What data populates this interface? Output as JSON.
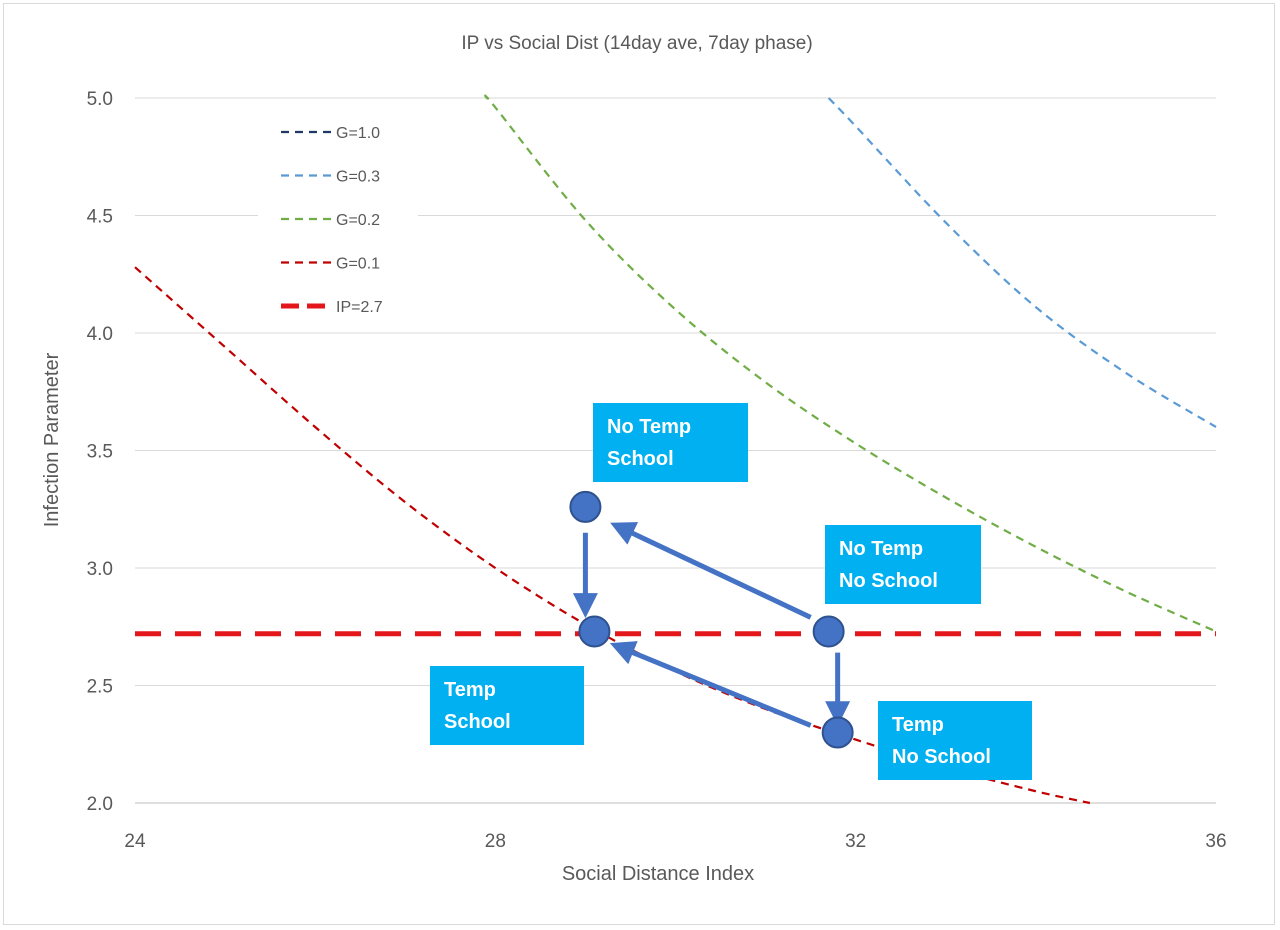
{
  "chart_data": {
    "type": "line",
    "title": "IP vs Social Dist (14day ave, 7day phase)",
    "xlabel": "Social Distance Index",
    "ylabel": "Infection Parameter",
    "xlim": [
      24,
      36
    ],
    "ylim": [
      2.0,
      5.0
    ],
    "xticks": [
      24,
      28,
      32,
      36
    ],
    "yticks": [
      2.0,
      2.5,
      3.0,
      3.5,
      4.0,
      4.5,
      5.0
    ],
    "grid": "horizontal",
    "legend_position": "top-left",
    "series": [
      {
        "name": "G=1.0",
        "color": "#1f3864",
        "style": "dashed",
        "x": [],
        "y": []
      },
      {
        "name": "G=0.3",
        "color": "#5b9bd5",
        "style": "dashed",
        "x": [
          31.7,
          32,
          33,
          34,
          35,
          36
        ],
        "y": [
          5.0,
          4.88,
          4.47,
          4.11,
          3.83,
          3.6
        ]
      },
      {
        "name": "G=0.2",
        "color": "#70ad47",
        "style": "dashed",
        "x": [
          27.9,
          28,
          29,
          30,
          31,
          32,
          33,
          34,
          35,
          36
        ],
        "y": [
          5.0,
          4.96,
          4.48,
          4.1,
          3.79,
          3.53,
          3.3,
          3.09,
          2.9,
          2.73
        ]
      },
      {
        "name": "G=0.1",
        "color": "#c00000",
        "style": "dashed",
        "x": [
          24,
          25,
          26,
          27,
          28,
          29,
          30,
          31,
          32,
          33,
          34,
          34.6
        ],
        "y": [
          4.28,
          3.94,
          3.6,
          3.28,
          3.0,
          2.76,
          2.56,
          2.4,
          2.27,
          2.15,
          2.05,
          2.0
        ]
      },
      {
        "name": "IP=2.7",
        "color": "#e3161b",
        "style": "dashed-thick",
        "x": [
          24,
          36
        ],
        "y": [
          2.72,
          2.72
        ]
      }
    ],
    "points": [
      {
        "id": "no-temp-school",
        "x": 29.0,
        "y": 3.26
      },
      {
        "id": "temp-school",
        "x": 29.1,
        "y": 2.73
      },
      {
        "id": "no-temp-no-school",
        "x": 31.7,
        "y": 2.73
      },
      {
        "id": "temp-no-school",
        "x": 31.8,
        "y": 2.3
      }
    ],
    "arrows": [
      {
        "from": [
          29.0,
          3.15
        ],
        "to": [
          29.0,
          2.84
        ]
      },
      {
        "from": [
          31.5,
          2.79
        ],
        "to": [
          29.4,
          3.17
        ]
      },
      {
        "from": [
          31.8,
          2.64
        ],
        "to": [
          31.8,
          2.38
        ]
      },
      {
        "from": [
          31.5,
          2.33
        ],
        "to": [
          29.4,
          2.66
        ]
      }
    ],
    "callouts": [
      {
        "id": "no-temp-school",
        "lines": [
          "No Temp",
          "School"
        ]
      },
      {
        "id": "no-temp-no-school",
        "lines": [
          "No Temp",
          "No School"
        ]
      },
      {
        "id": "temp-school",
        "lines": [
          "Temp",
          "School"
        ]
      },
      {
        "id": "temp-no-school",
        "lines": [
          "Temp",
          "No School"
        ]
      }
    ],
    "colors": {
      "callout_bg": "#00b0f0",
      "point_fill": "#4472c4",
      "point_stroke": "#2f528f",
      "arrow": "#4472c4",
      "grid": "#d9d9d9",
      "axis": "#bfbfbf",
      "text": "#595959"
    }
  }
}
